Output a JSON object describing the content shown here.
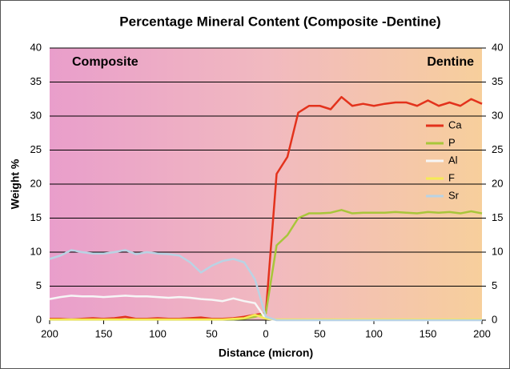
{
  "chart_data": {
    "type": "line",
    "title": "Percentage Mineral Content (Composite -Dentine)",
    "xlabel": "Distance (micron)",
    "ylabel": "Weight %",
    "annotations": [
      "Composite",
      "Dentine"
    ],
    "x": [
      -200,
      -190,
      -180,
      -170,
      -160,
      -150,
      -140,
      -130,
      -120,
      -110,
      -100,
      -90,
      -80,
      -70,
      -60,
      -50,
      -40,
      -30,
      -20,
      -10,
      0,
      10,
      20,
      30,
      40,
      50,
      60,
      70,
      80,
      90,
      100,
      110,
      120,
      130,
      140,
      150,
      160,
      170,
      180,
      190,
      200
    ],
    "series": [
      {
        "name": "Ca",
        "color": "#e3321c",
        "values": [
          0.2,
          0.2,
          0.1,
          0.2,
          0.3,
          0.2,
          0.3,
          0.5,
          0.2,
          0.2,
          0.3,
          0.2,
          0.2,
          0.3,
          0.4,
          0.2,
          0.2,
          0.3,
          0.5,
          0.8,
          1,
          21.5,
          24,
          30.5,
          31.5,
          31.5,
          31,
          32.8,
          31.5,
          31.8,
          31.5,
          31.8,
          32,
          32,
          31.5,
          32.3,
          31.5,
          32,
          31.5,
          32.5,
          31.8
        ]
      },
      {
        "name": "P",
        "color": "#a8c63a",
        "values": [
          0.1,
          0.1,
          0.1,
          0.1,
          0.1,
          0.1,
          0.1,
          0.1,
          0.1,
          0.1,
          0.1,
          0.1,
          0.1,
          0.1,
          0.1,
          0.1,
          0.1,
          0.1,
          0.2,
          0.5,
          1,
          11,
          12.5,
          15,
          15.7,
          15.7,
          15.8,
          16.2,
          15.7,
          15.8,
          15.8,
          15.8,
          15.9,
          15.8,
          15.7,
          15.9,
          15.8,
          15.9,
          15.7,
          16,
          15.7
        ]
      },
      {
        "name": "Al",
        "color": "#f6f6f6",
        "values": [
          3.1,
          3.4,
          3.6,
          3.5,
          3.5,
          3.4,
          3.5,
          3.6,
          3.5,
          3.5,
          3.4,
          3.3,
          3.4,
          3.3,
          3.1,
          3,
          2.8,
          3.2,
          2.8,
          2.5,
          0.2,
          0,
          0,
          0,
          0,
          0,
          0,
          0,
          0,
          0,
          0,
          0,
          0,
          0,
          0,
          0,
          0,
          0,
          0,
          0,
          0
        ]
      },
      {
        "name": "F",
        "color": "#f5ea55",
        "values": [
          0.1,
          0.1,
          0.1,
          0.1,
          0.1,
          0.1,
          0.1,
          0.1,
          0.1,
          0.1,
          0.1,
          0.1,
          0.1,
          0.1,
          0.1,
          0.1,
          0.1,
          0.2,
          0.3,
          0.8,
          0.2,
          0.1,
          0.1,
          0.1,
          0.1,
          0.1,
          0.1,
          0.1,
          0.1,
          0.1,
          0.1,
          0.1,
          0.1,
          0.1,
          0.1,
          0.1,
          0.1,
          0.1,
          0.1,
          0.1,
          0.1
        ]
      },
      {
        "name": "Sr",
        "color": "#b9d3e4",
        "values": [
          9,
          9.5,
          10.3,
          10,
          9.8,
          9.8,
          10,
          10.3,
          9.7,
          10,
          9.8,
          9.7,
          9.5,
          8.5,
          7,
          8,
          8.7,
          9,
          8.5,
          6,
          0.5,
          0,
          0,
          0,
          0,
          0,
          0,
          0,
          0,
          0,
          0,
          0,
          0,
          0,
          0,
          0,
          0,
          0,
          0,
          0,
          0
        ]
      }
    ],
    "xlim": [
      -200,
      200
    ],
    "xticks": [
      {
        "value": -200,
        "label": "200"
      },
      {
        "value": -150,
        "label": "150"
      },
      {
        "value": -100,
        "label": "100"
      },
      {
        "value": -50,
        "label": "50"
      },
      0,
      50,
      100,
      150,
      200
    ],
    "ylim": [
      0,
      40
    ],
    "yticks": [
      0,
      5,
      10,
      15,
      20,
      25,
      30,
      35,
      40
    ],
    "y2lim": [
      0,
      40
    ],
    "y2ticks": [
      0,
      5,
      10,
      15,
      20,
      25,
      30,
      35,
      40
    ],
    "grid": true,
    "legend": "right"
  }
}
